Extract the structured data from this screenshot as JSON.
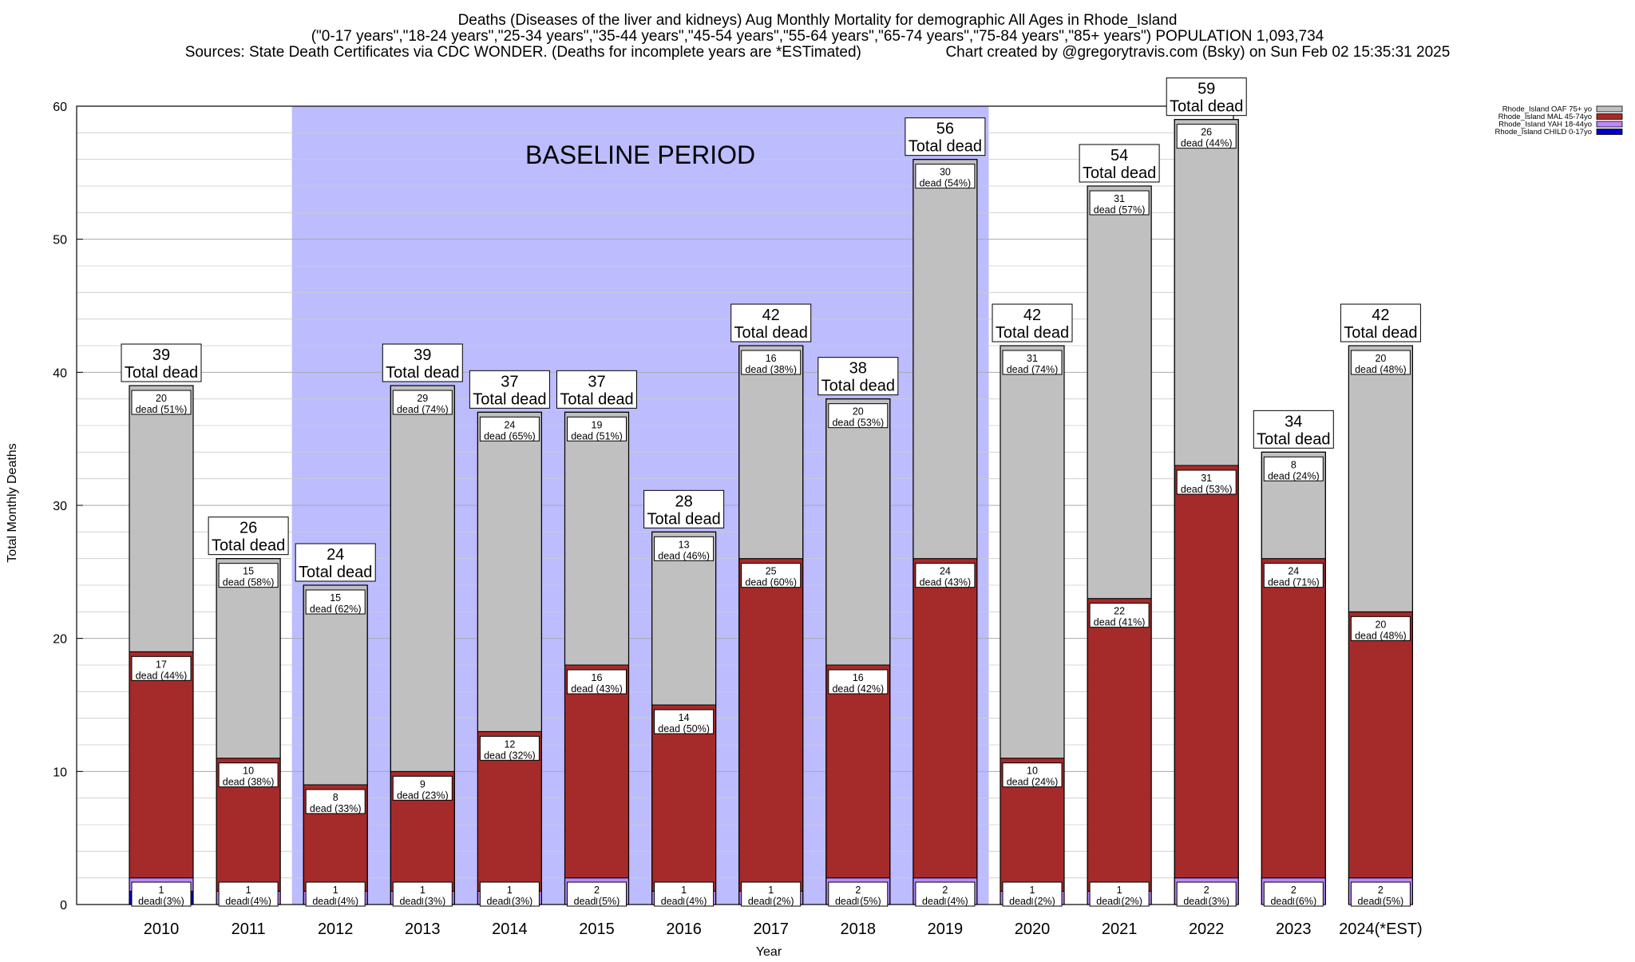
{
  "chart_data": {
    "type": "bar",
    "stacked": true,
    "title_lines": [
      "Deaths (Diseases of the liver and kidneys) Aug Monthly Mortality for demographic All Ages in Rhode_Island",
      "(\"0-17 years\",\"18-24 years\",\"25-34 years\",\"35-44 years\",\"45-54 years\",\"55-64 years\",\"65-74 years\",\"75-84 years\",\"85+ years\") POPULATION 1,093,734",
      "Sources: State Death Certificates via CDC WONDER. (Deaths for incomplete years are *ESTimated)                    Chart created by @gregorytravis.com (Bsky) on Sun Feb 02 15:35:31 2025"
    ],
    "xlabel": "Year",
    "ylabel": "Total Monthly Deaths",
    "ylim": [
      0,
      60
    ],
    "yticks": [
      0,
      10,
      20,
      30,
      40,
      50,
      60
    ],
    "grid": true,
    "baseline": {
      "label": "BASELINE PERIOD",
      "start": "2012",
      "end": "2019",
      "color": "#bcbcff"
    },
    "categories": [
      "2010",
      "2011",
      "2012",
      "2013",
      "2014",
      "2015",
      "2016",
      "2017",
      "2018",
      "2019",
      "2020",
      "2021",
      "2022",
      "2023",
      "2024(*EST)"
    ],
    "series": [
      {
        "name": "Rhode_Island CHILD 0-17yo",
        "color": "#0000cc",
        "values": [
          1,
          0,
          0,
          0,
          0,
          0,
          0,
          0,
          0,
          0,
          0,
          0,
          0,
          0,
          0
        ]
      },
      {
        "name": "Rhode_Island YAH 18-44yo",
        "color": "#bb88ff",
        "values": [
          1,
          1,
          1,
          1,
          1,
          2,
          1,
          1,
          2,
          2,
          1,
          1,
          2,
          2,
          2
        ]
      },
      {
        "name": "Rhode_Island MAL 45-74yo",
        "color": "#a52a2a",
        "values": [
          17,
          10,
          8,
          9,
          12,
          16,
          14,
          25,
          16,
          24,
          10,
          22,
          31,
          24,
          20
        ]
      },
      {
        "name": "Rhode_Island OAF 75+ yo",
        "color": "#c0c0c0",
        "values": [
          20,
          15,
          15,
          29,
          24,
          19,
          13,
          16,
          20,
          30,
          31,
          31,
          26,
          8,
          20
        ]
      }
    ],
    "legend_position": "top-right",
    "legend_order": [
      "Rhode_Island OAF 75+ yo",
      "Rhode_Island MAL 45-74yo",
      "Rhode_Island YAH 18-44yo",
      "Rhode_Island CHILD 0-17yo"
    ],
    "totals": [
      39,
      26,
      24,
      39,
      37,
      37,
      28,
      42,
      38,
      56,
      42,
      54,
      59,
      34,
      42
    ],
    "total_label": "Total dead",
    "segment_labels": {
      "OAF": [
        "20\ndead (51%)",
        "15\ndead (58%)",
        "15\ndead (62%)",
        "29\ndead (74%)",
        "24\ndead (65%)",
        "19\ndead (51%)",
        "13\ndead (46%)",
        "16\ndead (38%)",
        "20\ndead (53%)",
        "30\ndead (54%)",
        "31\ndead (74%)",
        "31\ndead (57%)",
        "26\ndead (44%)",
        "8\ndead (24%)",
        "20\ndead (48%)"
      ],
      "MAL": [
        "17\ndead (44%)",
        "10\ndead (38%)",
        "8\ndead (33%)",
        "9\ndead (23%)",
        "12\ndead (32%)",
        "16\ndead (43%)",
        "14\ndead (50%)",
        "25\ndead (60%)",
        "16\ndead (42%)",
        "24\ndead (43%)",
        "10\ndead (24%)",
        "22\ndead (41%)",
        "31\ndead (53%)",
        "24\ndead (71%)",
        "20\ndead (48%)"
      ],
      "YAH": [
        "1\ndead (3%)",
        "1\ndead (4%)",
        "1\ndead (4%)",
        "1\ndead (3%)",
        "1\ndead (3%)",
        "2\ndead (5%)",
        "1\ndead (4%)",
        "1\ndead (2%)",
        "2\ndead (5%)",
        "2\ndead (4%)",
        "1\ndead (2%)",
        "1\ndead (2%)",
        "2\ndead (3%)",
        "2\ndead (6%)",
        "2\ndead (5%)"
      ]
    }
  }
}
